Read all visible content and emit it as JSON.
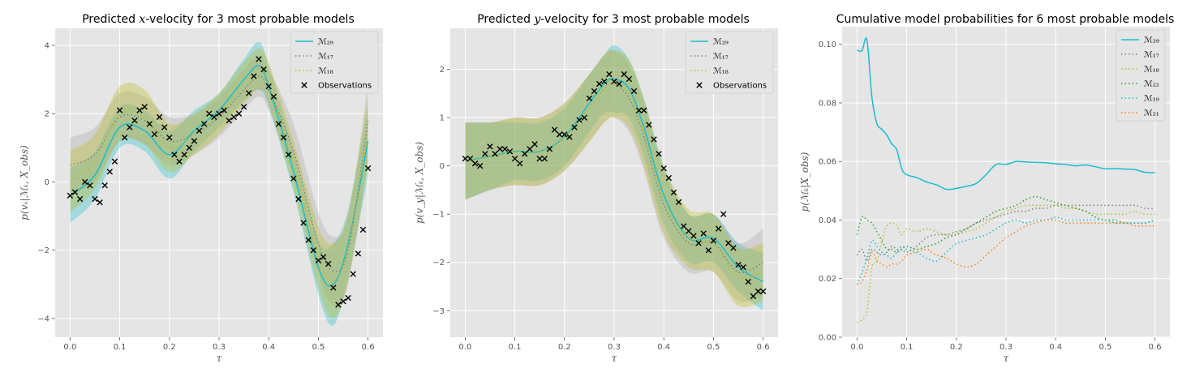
{
  "colors": {
    "m29": "#17becf",
    "m17": "#7f7f7f",
    "m18": "#bcbd22",
    "m22": "#2ca02c",
    "m19": "#17becf",
    "m21": "#ff7f0e",
    "obs": "#000000"
  },
  "chart_data": [
    {
      "type": "line",
      "title_prefix": "Predicted ",
      "title_var": "x",
      "title_suffix": "-velocity for 3 most probable models",
      "xlabel": "τ",
      "ylabel": "p(vₓ|ℳₖ, X_obs)",
      "xlim": [
        -0.03,
        0.63
      ],
      "ylim": [
        -4.55,
        4.5
      ],
      "xticks": [
        0.0,
        0.1,
        0.2,
        0.3,
        0.4,
        0.5,
        0.6
      ],
      "xticklabels": [
        "0.0",
        "0.1",
        "0.2",
        "0.3",
        "0.4",
        "0.5",
        "0.6"
      ],
      "yticks": [
        -4,
        -2,
        0,
        2,
        4
      ],
      "yticklabels": [
        "−4",
        "−2",
        "0",
        "2",
        "4"
      ],
      "legend_position": "top-right",
      "legend": [
        "ℳ₂₉",
        "ℳ₁₇",
        "ℳ₁₈",
        "Observations"
      ],
      "x": [
        0.0,
        0.05,
        0.1,
        0.15,
        0.2,
        0.25,
        0.3,
        0.35,
        0.38,
        0.4,
        0.45,
        0.5,
        0.53,
        0.56,
        0.6
      ],
      "series": [
        {
          "name": "ℳ₂₉",
          "style": "solid",
          "color_key": "m29",
          "values": [
            -0.4,
            0.2,
            1.6,
            1.5,
            0.8,
            1.5,
            2.1,
            3.0,
            3.4,
            2.8,
            0.3,
            -2.5,
            -3.0,
            -1.8,
            1.2
          ],
          "band": [
            0.8,
            0.7,
            0.6,
            0.6,
            0.7,
            0.6,
            0.5,
            0.6,
            0.7,
            0.6,
            0.6,
            0.8,
            1.2,
            1.0,
            1.0
          ]
        },
        {
          "name": "ℳ₁₇",
          "style": "dotted",
          "color_key": "m17",
          "values": [
            0.5,
            0.8,
            1.9,
            1.8,
            1.2,
            1.4,
            1.9,
            2.7,
            3.1,
            2.7,
            0.9,
            -1.8,
            -2.6,
            -2.0,
            1.8
          ],
          "band": [
            0.8,
            0.8,
            0.7,
            0.7,
            0.7,
            0.6,
            0.6,
            0.6,
            0.6,
            0.6,
            0.8,
            0.9,
            1.0,
            1.0,
            1.1
          ]
        },
        {
          "name": "ℳ₁₈",
          "style": "dotted",
          "color_key": "m18",
          "values": [
            0.0,
            0.6,
            2.0,
            1.9,
            1.0,
            1.4,
            2.0,
            2.9,
            3.3,
            2.9,
            0.5,
            -2.2,
            -2.9,
            -1.9,
            1.5
          ],
          "band": [
            0.9,
            0.8,
            0.8,
            0.8,
            0.7,
            0.6,
            0.6,
            0.6,
            0.6,
            0.6,
            0.7,
            0.9,
            1.1,
            1.0,
            1.0
          ]
        }
      ],
      "observations": {
        "name": "Observations",
        "x": [
          0.0,
          0.01,
          0.02,
          0.03,
          0.04,
          0.05,
          0.06,
          0.07,
          0.08,
          0.09,
          0.1,
          0.11,
          0.12,
          0.13,
          0.14,
          0.15,
          0.16,
          0.17,
          0.18,
          0.19,
          0.2,
          0.21,
          0.22,
          0.23,
          0.24,
          0.25,
          0.26,
          0.27,
          0.28,
          0.29,
          0.3,
          0.31,
          0.32,
          0.33,
          0.34,
          0.35,
          0.36,
          0.37,
          0.38,
          0.39,
          0.4,
          0.41,
          0.42,
          0.43,
          0.44,
          0.45,
          0.46,
          0.47,
          0.48,
          0.49,
          0.5,
          0.51,
          0.52,
          0.53,
          0.54,
          0.55,
          0.56,
          0.57,
          0.58,
          0.59,
          0.6
        ],
        "y": [
          -0.4,
          -0.3,
          -0.5,
          0.0,
          -0.1,
          -0.5,
          -0.6,
          -0.1,
          0.3,
          0.6,
          2.1,
          1.3,
          1.6,
          1.8,
          2.1,
          2.2,
          1.7,
          1.4,
          1.9,
          1.6,
          1.3,
          0.8,
          0.6,
          0.8,
          1.0,
          1.2,
          1.5,
          1.7,
          2.0,
          1.9,
          2.0,
          2.1,
          1.8,
          1.9,
          2.0,
          2.2,
          2.6,
          3.1,
          3.6,
          3.3,
          2.8,
          2.5,
          1.7,
          1.3,
          0.8,
          0.1,
          -0.5,
          -1.2,
          -1.7,
          -2.0,
          -2.3,
          -2.2,
          -2.4,
          -3.1,
          -3.6,
          -3.5,
          -3.4,
          -2.7,
          -2.1,
          -1.4,
          0.4
        ]
      }
    },
    {
      "type": "line",
      "title_prefix": "Predicted ",
      "title_var": "y",
      "title_suffix": "-velocity for 3 most probable models",
      "xlabel": "τ",
      "ylabel": "p(v_y|ℳₖ, X_obs)",
      "xlim": [
        -0.03,
        0.63
      ],
      "ylim": [
        -3.55,
        2.85
      ],
      "xticks": [
        0.0,
        0.1,
        0.2,
        0.3,
        0.4,
        0.5,
        0.6
      ],
      "xticklabels": [
        "0.0",
        "0.1",
        "0.2",
        "0.3",
        "0.4",
        "0.5",
        "0.6"
      ],
      "yticks": [
        -3,
        -2,
        -1,
        0,
        1,
        2
      ],
      "yticklabels": [
        "−3",
        "−2",
        "−1",
        "0",
        "1",
        "2"
      ],
      "legend_position": "top-right",
      "legend": [
        "ℳ₂₉",
        "ℳ₁₇",
        "ℳ₁₈",
        "Observations"
      ],
      "x": [
        0.0,
        0.05,
        0.1,
        0.15,
        0.2,
        0.25,
        0.28,
        0.3,
        0.33,
        0.36,
        0.4,
        0.45,
        0.5,
        0.55,
        0.6
      ],
      "series": [
        {
          "name": "ℳ₂₉",
          "style": "solid",
          "color_key": "m29",
          "values": [
            0.1,
            0.2,
            0.3,
            0.3,
            0.6,
            1.3,
            1.7,
            1.8,
            1.6,
            0.8,
            -0.6,
            -1.5,
            -1.5,
            -2.1,
            -2.4
          ],
          "band": [
            0.8,
            0.7,
            0.6,
            0.6,
            0.6,
            0.6,
            0.6,
            0.7,
            0.6,
            0.6,
            0.6,
            0.5,
            0.5,
            0.5,
            0.6
          ]
        },
        {
          "name": "ℳ₁₇",
          "style": "dotted",
          "color_key": "m17",
          "values": [
            0.1,
            0.2,
            0.3,
            0.3,
            0.6,
            1.2,
            1.6,
            1.7,
            1.4,
            0.6,
            -0.8,
            -1.6,
            -1.6,
            -2.2,
            -2.0
          ],
          "band": [
            0.8,
            0.7,
            0.7,
            0.7,
            0.7,
            0.7,
            0.7,
            0.7,
            0.7,
            0.7,
            0.7,
            0.6,
            0.6,
            0.6,
            0.7
          ]
        },
        {
          "name": "ℳ₁₈",
          "style": "dotted",
          "color_key": "m18",
          "values": [
            0.1,
            0.2,
            0.3,
            0.3,
            0.6,
            1.2,
            1.6,
            1.7,
            1.5,
            0.7,
            -0.7,
            -1.5,
            -1.6,
            -2.3,
            -2.2
          ],
          "band": [
            0.8,
            0.7,
            0.7,
            0.7,
            0.7,
            0.7,
            0.7,
            0.7,
            0.7,
            0.7,
            0.7,
            0.6,
            0.6,
            0.6,
            0.6
          ]
        }
      ],
      "observations": {
        "name": "Observations",
        "x": [
          0.0,
          0.01,
          0.02,
          0.03,
          0.04,
          0.05,
          0.06,
          0.07,
          0.08,
          0.09,
          0.1,
          0.11,
          0.12,
          0.13,
          0.14,
          0.15,
          0.16,
          0.17,
          0.18,
          0.19,
          0.2,
          0.21,
          0.22,
          0.23,
          0.24,
          0.25,
          0.26,
          0.27,
          0.28,
          0.29,
          0.3,
          0.31,
          0.32,
          0.33,
          0.34,
          0.35,
          0.36,
          0.37,
          0.38,
          0.39,
          0.4,
          0.41,
          0.42,
          0.43,
          0.44,
          0.45,
          0.46,
          0.47,
          0.48,
          0.49,
          0.5,
          0.51,
          0.52,
          0.53,
          0.54,
          0.55,
          0.56,
          0.57,
          0.58,
          0.59,
          0.6
        ],
        "y": [
          0.15,
          0.15,
          0.05,
          0.0,
          0.25,
          0.4,
          0.25,
          0.35,
          0.35,
          0.3,
          0.15,
          0.05,
          0.25,
          0.35,
          0.45,
          0.15,
          0.15,
          0.35,
          0.75,
          0.65,
          0.65,
          0.6,
          0.8,
          0.95,
          1.0,
          1.4,
          1.55,
          1.7,
          1.75,
          1.9,
          1.75,
          1.7,
          1.9,
          1.8,
          1.55,
          1.15,
          1.15,
          0.85,
          0.55,
          0.25,
          -0.05,
          -0.25,
          -0.55,
          -0.75,
          -1.25,
          -1.35,
          -1.45,
          -1.6,
          -1.4,
          -1.75,
          -1.55,
          -1.3,
          -1.0,
          -1.6,
          -1.7,
          -2.05,
          -2.1,
          -2.4,
          -2.7,
          -2.6,
          -2.6
        ]
      }
    },
    {
      "type": "line",
      "title": "Cumulative model probabilities for 6 most probable models",
      "xlabel": "τ",
      "ylabel": "p(ℳₖ|X_obs)",
      "xlim": [
        -0.03,
        0.63
      ],
      "ylim": [
        0.0,
        0.106
      ],
      "xticks": [
        0.0,
        0.1,
        0.2,
        0.3,
        0.4,
        0.5,
        0.6
      ],
      "xticklabels": [
        "0.0",
        "0.1",
        "0.2",
        "0.3",
        "0.4",
        "0.5",
        "0.6"
      ],
      "yticks": [
        0.0,
        0.02,
        0.04,
        0.06,
        0.08,
        0.1
      ],
      "yticklabels": [
        "0.00",
        "0.02",
        "0.04",
        "0.06",
        "0.08",
        "0.10"
      ],
      "legend_position": "top-right",
      "legend": [
        "ℳ₂₉",
        "ℳ₁₇",
        "ℳ₁₈",
        "ℳ₂₂",
        "ℳ₁₉",
        "ℳ₂₁"
      ],
      "x": [
        0.0,
        0.01,
        0.02,
        0.03,
        0.04,
        0.05,
        0.06,
        0.07,
        0.08,
        0.09,
        0.1,
        0.12,
        0.14,
        0.16,
        0.18,
        0.2,
        0.22,
        0.24,
        0.26,
        0.28,
        0.3,
        0.32,
        0.34,
        0.36,
        0.38,
        0.4,
        0.42,
        0.44,
        0.46,
        0.48,
        0.5,
        0.52,
        0.54,
        0.56,
        0.58,
        0.6
      ],
      "series": [
        {
          "name": "ℳ₂₉",
          "style": "solid",
          "color_key": "m29",
          "values": [
            0.098,
            0.0978,
            0.1015,
            0.082,
            0.073,
            0.071,
            0.069,
            0.066,
            0.064,
            0.0575,
            0.0555,
            0.0545,
            0.053,
            0.052,
            0.0505,
            0.0508,
            0.0515,
            0.0525,
            0.0555,
            0.059,
            0.059,
            0.06,
            0.0598,
            0.0597,
            0.0596,
            0.0592,
            0.059,
            0.0585,
            0.0588,
            0.0582,
            0.0575,
            0.0576,
            0.0574,
            0.0572,
            0.0563,
            0.0562
          ]
        },
        {
          "name": "ℳ₁₇",
          "style": "dotted",
          "color_key": "m17",
          "values": [
            0.028,
            0.03,
            0.026,
            0.03,
            0.029,
            0.028,
            0.029,
            0.031,
            0.03,
            0.03,
            0.029,
            0.031,
            0.034,
            0.035,
            0.035,
            0.036,
            0.037,
            0.039,
            0.04,
            0.041,
            0.042,
            0.043,
            0.043,
            0.044,
            0.044,
            0.045,
            0.045,
            0.045,
            0.045,
            0.045,
            0.045,
            0.045,
            0.045,
            0.045,
            0.044,
            0.044
          ]
        },
        {
          "name": "ℳ₁₈",
          "style": "dotted",
          "color_key": "m18",
          "values": [
            0.005,
            0.006,
            0.009,
            0.024,
            0.026,
            0.033,
            0.038,
            0.039,
            0.038,
            0.035,
            0.037,
            0.036,
            0.037,
            0.036,
            0.035,
            0.035,
            0.036,
            0.037,
            0.039,
            0.041,
            0.043,
            0.044,
            0.045,
            0.045,
            0.045,
            0.045,
            0.044,
            0.044,
            0.043,
            0.042,
            0.042,
            0.042,
            0.042,
            0.043,
            0.042,
            0.042
          ]
        },
        {
          "name": "ℳ₂₂",
          "style": "dotted",
          "color_key": "m22",
          "values": [
            0.035,
            0.041,
            0.04,
            0.039,
            0.036,
            0.033,
            0.03,
            0.03,
            0.029,
            0.03,
            0.031,
            0.03,
            0.031,
            0.032,
            0.034,
            0.035,
            0.037,
            0.039,
            0.041,
            0.043,
            0.044,
            0.045,
            0.047,
            0.048,
            0.047,
            0.046,
            0.045,
            0.044,
            0.043,
            0.041,
            0.04,
            0.04,
            0.039,
            0.039,
            0.039,
            0.04
          ]
        },
        {
          "name": "ℳ₁₉",
          "style": "dotted",
          "color_key": "m19",
          "values": [
            0.018,
            0.022,
            0.027,
            0.033,
            0.031,
            0.029,
            0.028,
            0.027,
            0.029,
            0.031,
            0.03,
            0.029,
            0.027,
            0.026,
            0.029,
            0.032,
            0.033,
            0.034,
            0.035,
            0.037,
            0.039,
            0.04,
            0.039,
            0.04,
            0.04,
            0.041,
            0.04,
            0.04,
            0.04,
            0.04,
            0.04,
            0.039,
            0.039,
            0.039,
            0.039,
            0.04
          ]
        },
        {
          "name": "ℳ₂₁",
          "style": "dotted",
          "color_key": "m21",
          "values": [
            0.018,
            0.019,
            0.023,
            0.029,
            0.026,
            0.025,
            0.024,
            0.025,
            0.025,
            0.026,
            0.028,
            0.029,
            0.03,
            0.028,
            0.027,
            0.025,
            0.024,
            0.025,
            0.028,
            0.031,
            0.034,
            0.036,
            0.038,
            0.039,
            0.04,
            0.04,
            0.039,
            0.039,
            0.039,
            0.039,
            0.039,
            0.039,
            0.039,
            0.038,
            0.038,
            0.038
          ]
        }
      ]
    }
  ]
}
